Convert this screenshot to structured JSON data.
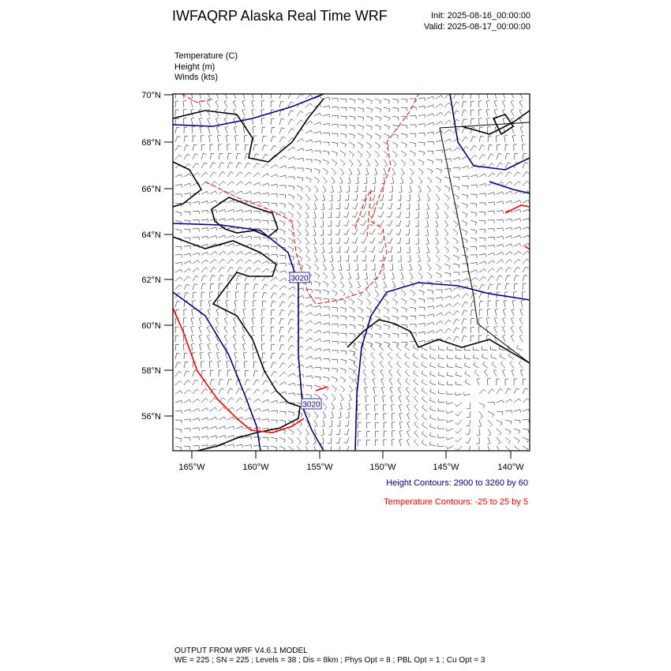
{
  "header": {
    "title": "IWFAQRP Alaska Real Time WRF",
    "init": "Init: 2025-08-16_00:00:00",
    "valid": "Valid: 2025-08-17_00:00:00"
  },
  "fields": [
    "Temperature   (C)",
    "Height   (m)",
    "Winds   (kts)"
  ],
  "map": {
    "lat_labels": [
      "70°N",
      "68°N",
      "66°N",
      "64°N",
      "62°N",
      "60°N",
      "58°N",
      "56°N"
    ],
    "lon_labels": [
      "165°W",
      "160°W",
      "155°W",
      "150°W",
      "145°W",
      "140°W"
    ],
    "contour_labels": [
      "3020",
      "3020"
    ]
  },
  "legend": {
    "height": "Height Contours: 2900 to 3260 by 60",
    "temperature": "Temperature Contours: -25 to 25 by 5"
  },
  "footer": {
    "line1": "OUTPUT FROM WRF V4.6.1 MODEL",
    "line2": "WE = 225 ; SN = 225 ; Levels = 38 ; Dis = 8km ; Phys Opt = 8 ; PBL Opt = 1 ; Cu Opt = 3"
  }
}
